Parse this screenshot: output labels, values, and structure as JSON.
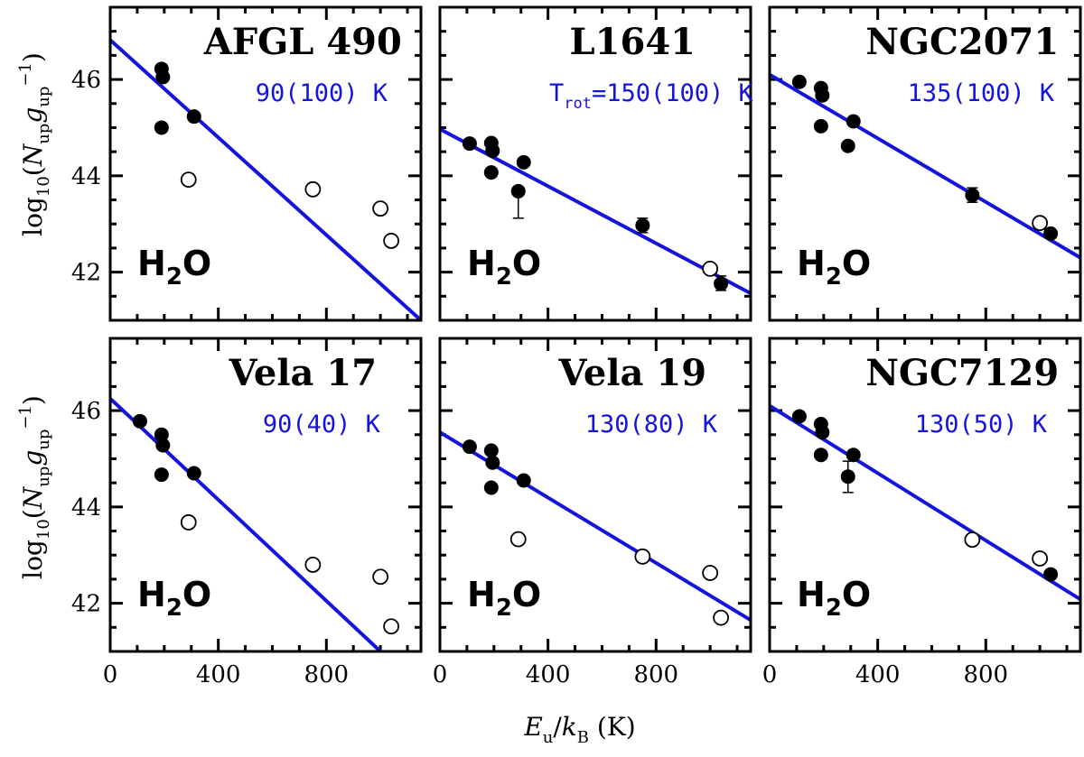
{
  "figure": {
    "y_axis_label": "log10(Nup gup−1)",
    "x_axis_label": "Eu/kB (K)"
  },
  "chart_data": [
    {
      "type": "scatter",
      "title": "AFGL 490",
      "species": "H2O",
      "temperature_label": "90(100) K",
      "xlim": [
        0,
        1150
      ],
      "ylim": [
        41,
        47.5
      ],
      "xticks": [
        "0",
        "400",
        "800"
      ],
      "yticks": [
        "42",
        "44",
        "46"
      ],
      "fit_line": {
        "x": [
          0,
          1150
        ],
        "y": [
          46.82,
          41.0
        ]
      },
      "detected": [
        {
          "x": 190,
          "y": 46.22
        },
        {
          "x": 195,
          "y": 46.05
        },
        {
          "x": 190,
          "y": 45.0
        },
        {
          "x": 310,
          "y": 45.23
        }
      ],
      "upper_limits": [
        {
          "x": 290,
          "y": 43.92
        },
        {
          "x": 750,
          "y": 43.72
        },
        {
          "x": 1000,
          "y": 43.32
        },
        {
          "x": 1040,
          "y": 42.65
        }
      ],
      "error_bars": []
    },
    {
      "type": "scatter",
      "title": "L1641",
      "species": "H2O",
      "temperature_prefix": "T",
      "temperature_subscript": "rot",
      "temperature_label": "=150(100) K",
      "xlim": [
        0,
        1150
      ],
      "ylim": [
        41,
        47.5
      ],
      "xticks": [
        "0",
        "400",
        "800"
      ],
      "yticks": [
        "42",
        "44",
        "46"
      ],
      "fit_line": {
        "x": [
          0,
          1150
        ],
        "y": [
          44.97,
          41.56
        ]
      },
      "detected": [
        {
          "x": 110,
          "y": 44.67
        },
        {
          "x": 190,
          "y": 44.68
        },
        {
          "x": 195,
          "y": 44.52
        },
        {
          "x": 190,
          "y": 44.07
        },
        {
          "x": 310,
          "y": 44.28
        },
        {
          "x": 290,
          "y": 43.68
        },
        {
          "x": 750,
          "y": 42.97
        },
        {
          "x": 1040,
          "y": 41.76
        }
      ],
      "upper_limits": [
        {
          "x": 1000,
          "y": 42.07
        }
      ],
      "error_bars": [
        {
          "x": 290,
          "low": 43.12,
          "high": 43.68
        },
        {
          "x": 750,
          "low": 42.82,
          "high": 43.12
        },
        {
          "x": 1040,
          "low": 41.62,
          "high": 41.92
        }
      ]
    },
    {
      "type": "scatter",
      "title": "NGC2071",
      "species": "H2O",
      "temperature_label": "135(100) K",
      "xlim": [
        0,
        1150
      ],
      "ylim": [
        41,
        47.5
      ],
      "xticks": [
        "0",
        "400",
        "800"
      ],
      "yticks": [
        "42",
        "44",
        "46"
      ],
      "fit_line": {
        "x": [
          0,
          1150
        ],
        "y": [
          46.1,
          42.3
        ]
      },
      "detected": [
        {
          "x": 110,
          "y": 45.95
        },
        {
          "x": 190,
          "y": 45.82
        },
        {
          "x": 195,
          "y": 45.67
        },
        {
          "x": 190,
          "y": 45.03
        },
        {
          "x": 310,
          "y": 45.13
        },
        {
          "x": 290,
          "y": 44.62
        },
        {
          "x": 750,
          "y": 43.6
        },
        {
          "x": 1040,
          "y": 42.8
        }
      ],
      "upper_limits": [
        {
          "x": 1000,
          "y": 43.02
        }
      ],
      "error_bars": [
        {
          "x": 750,
          "low": 43.45,
          "high": 43.75
        }
      ]
    },
    {
      "type": "scatter",
      "title": "Vela 17",
      "species": "H2O",
      "temperature_label": "90(40) K",
      "xlim": [
        0,
        1150
      ],
      "ylim": [
        41,
        47.5
      ],
      "xticks": [
        "0",
        "400",
        "800"
      ],
      "yticks": [
        "42",
        "44",
        "46"
      ],
      "fit_line": {
        "x": [
          0,
          1000
        ],
        "y": [
          46.25,
          41.0
        ]
      },
      "detected": [
        {
          "x": 110,
          "y": 45.78
        },
        {
          "x": 190,
          "y": 45.5
        },
        {
          "x": 195,
          "y": 45.28
        },
        {
          "x": 190,
          "y": 44.67
        },
        {
          "x": 310,
          "y": 44.7
        }
      ],
      "upper_limits": [
        {
          "x": 290,
          "y": 43.68
        },
        {
          "x": 750,
          "y": 42.8
        },
        {
          "x": 1000,
          "y": 42.55
        },
        {
          "x": 1040,
          "y": 41.52
        }
      ],
      "error_bars": []
    },
    {
      "type": "scatter",
      "title": "Vela 19",
      "species": "H2O",
      "temperature_label": "130(80) K",
      "xlim": [
        0,
        1150
      ],
      "ylim": [
        41,
        47.5
      ],
      "xticks": [
        "0",
        "400",
        "800"
      ],
      "yticks": [
        "42",
        "44",
        "46"
      ],
      "fit_line": {
        "x": [
          0,
          1150
        ],
        "y": [
          45.55,
          41.65
        ]
      },
      "detected": [
        {
          "x": 110,
          "y": 45.25
        },
        {
          "x": 190,
          "y": 45.17
        },
        {
          "x": 195,
          "y": 44.92
        },
        {
          "x": 190,
          "y": 44.4
        },
        {
          "x": 310,
          "y": 44.55
        }
      ],
      "upper_limits": [
        {
          "x": 290,
          "y": 43.33
        },
        {
          "x": 750,
          "y": 42.97
        },
        {
          "x": 1000,
          "y": 42.63
        },
        {
          "x": 1040,
          "y": 41.7
        }
      ],
      "error_bars": []
    },
    {
      "type": "scatter",
      "title": "NGC7129",
      "species": "H2O",
      "temperature_label": "130(50) K",
      "xlim": [
        0,
        1150
      ],
      "ylim": [
        41,
        47.5
      ],
      "xticks": [
        "0",
        "400",
        "800"
      ],
      "yticks": [
        "42",
        "44",
        "46"
      ],
      "fit_line": {
        "x": [
          0,
          1150
        ],
        "y": [
          46.1,
          42.08
        ]
      },
      "detected": [
        {
          "x": 110,
          "y": 45.88
        },
        {
          "x": 190,
          "y": 45.72
        },
        {
          "x": 195,
          "y": 45.55
        },
        {
          "x": 190,
          "y": 45.08
        },
        {
          "x": 310,
          "y": 45.08
        },
        {
          "x": 290,
          "y": 44.63
        },
        {
          "x": 1040,
          "y": 42.6
        }
      ],
      "upper_limits": [
        {
          "x": 750,
          "y": 43.32
        },
        {
          "x": 1000,
          "y": 42.93
        }
      ],
      "error_bars": [
        {
          "x": 290,
          "low": 44.3,
          "high": 44.95
        }
      ]
    }
  ]
}
